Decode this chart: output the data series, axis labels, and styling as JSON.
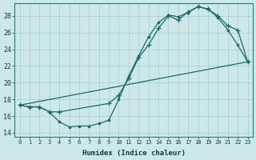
{
  "title": "",
  "xlabel": "Humidex (Indice chaleur)",
  "bg_color": "#cce8e8",
  "grid_color": "#aacccc",
  "line_color": "#1a6b6b",
  "xlim": [
    -0.5,
    23.5
  ],
  "ylim": [
    13.5,
    29.5
  ],
  "xticks": [
    0,
    1,
    2,
    3,
    4,
    5,
    6,
    7,
    8,
    9,
    10,
    11,
    12,
    13,
    14,
    15,
    16,
    17,
    18,
    19,
    20,
    21,
    22,
    23
  ],
  "yticks": [
    14,
    16,
    18,
    20,
    22,
    24,
    26,
    28
  ],
  "line1_x": [
    0,
    1,
    2,
    3,
    4,
    5,
    6,
    7,
    8,
    9,
    10,
    11,
    12,
    13,
    14,
    15,
    16,
    17,
    18,
    19,
    20,
    21,
    22,
    23
  ],
  "line1_y": [
    17.3,
    17.1,
    17.1,
    16.5,
    15.3,
    14.7,
    14.8,
    14.8,
    15.1,
    15.5,
    18.0,
    20.8,
    23.2,
    25.5,
    27.2,
    28.1,
    27.9,
    28.4,
    29.1,
    28.8,
    27.8,
    26.3,
    24.5,
    22.5
  ],
  "line2_x": [
    0,
    1,
    2,
    3,
    4,
    9,
    10,
    11,
    12,
    13,
    14,
    15,
    16,
    17,
    18,
    19,
    20,
    21,
    22,
    23
  ],
  "line2_y": [
    17.3,
    17.1,
    17.1,
    16.5,
    16.5,
    17.5,
    18.5,
    20.5,
    23.0,
    24.5,
    26.5,
    28.0,
    27.5,
    28.5,
    29.1,
    28.8,
    28.0,
    26.8,
    26.3,
    22.5
  ],
  "line3_x": [
    0,
    23
  ],
  "line3_y": [
    17.3,
    22.5
  ]
}
